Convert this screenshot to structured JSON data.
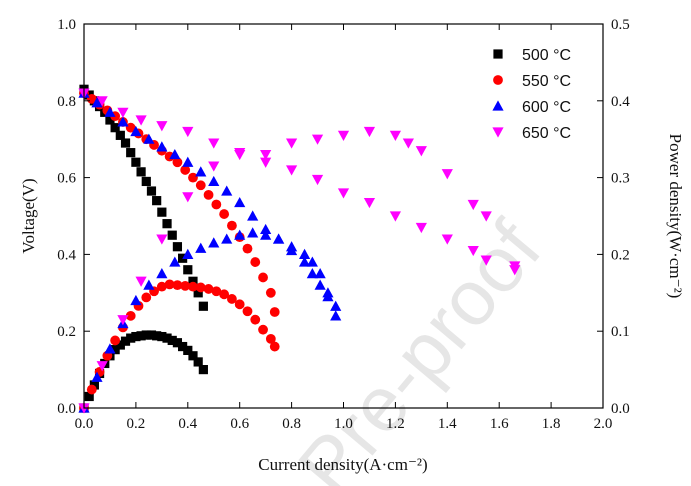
{
  "watermark": "Pre-proof",
  "chart_data": {
    "type": "scatter",
    "xlabel": "Current density(A·cm⁻²)",
    "ylabel": "Voltage(V)",
    "y2label": "Power density(W·cm⁻²)",
    "xlim": [
      0,
      2.0
    ],
    "ylim": [
      0,
      1.0
    ],
    "y2lim": [
      0,
      0.5
    ],
    "xticks": [
      "0.0",
      "0.2",
      "0.4",
      "0.6",
      "0.8",
      "1.0",
      "1.2",
      "1.4",
      "1.6",
      "1.8",
      "2.0"
    ],
    "yticks": [
      "0.0",
      "0.2",
      "0.4",
      "0.6",
      "0.8",
      "1.0"
    ],
    "y2ticks": [
      "0.0",
      "0.1",
      "0.2",
      "0.3",
      "0.4",
      "0.5"
    ],
    "grid": false,
    "legend_position": "top-right",
    "series": [
      {
        "name": "500 °C",
        "color": "#000000",
        "marker": "square",
        "voltage": [
          [
            0.0,
            0.83
          ],
          [
            0.02,
            0.815
          ],
          [
            0.04,
            0.8
          ],
          [
            0.06,
            0.785
          ],
          [
            0.08,
            0.77
          ],
          [
            0.1,
            0.75
          ],
          [
            0.12,
            0.73
          ],
          [
            0.14,
            0.71
          ],
          [
            0.16,
            0.69
          ],
          [
            0.18,
            0.665
          ],
          [
            0.2,
            0.64
          ],
          [
            0.22,
            0.615
          ],
          [
            0.24,
            0.59
          ],
          [
            0.26,
            0.565
          ],
          [
            0.28,
            0.54
          ],
          [
            0.3,
            0.51
          ],
          [
            0.32,
            0.48
          ],
          [
            0.34,
            0.45
          ],
          [
            0.36,
            0.42
          ],
          [
            0.38,
            0.39
          ],
          [
            0.4,
            0.36
          ],
          [
            0.42,
            0.33
          ],
          [
            0.44,
            0.3
          ],
          [
            0.46,
            0.265
          ]
        ],
        "power": [
          [
            0.0,
            0.0
          ],
          [
            0.02,
            0.015
          ],
          [
            0.04,
            0.03
          ],
          [
            0.06,
            0.045
          ],
          [
            0.08,
            0.058
          ],
          [
            0.1,
            0.068
          ],
          [
            0.12,
            0.076
          ],
          [
            0.14,
            0.082
          ],
          [
            0.16,
            0.087
          ],
          [
            0.18,
            0.091
          ],
          [
            0.2,
            0.093
          ],
          [
            0.22,
            0.094
          ],
          [
            0.24,
            0.095
          ],
          [
            0.26,
            0.095
          ],
          [
            0.28,
            0.094
          ],
          [
            0.3,
            0.093
          ],
          [
            0.32,
            0.091
          ],
          [
            0.34,
            0.088
          ],
          [
            0.36,
            0.085
          ],
          [
            0.38,
            0.08
          ],
          [
            0.4,
            0.075
          ],
          [
            0.42,
            0.068
          ],
          [
            0.44,
            0.06
          ],
          [
            0.46,
            0.05
          ]
        ]
      },
      {
        "name": "550 °C",
        "color": "#ff0000",
        "marker": "circle",
        "voltage": [
          [
            0.0,
            0.82
          ],
          [
            0.03,
            0.805
          ],
          [
            0.06,
            0.79
          ],
          [
            0.09,
            0.775
          ],
          [
            0.12,
            0.76
          ],
          [
            0.15,
            0.745
          ],
          [
            0.18,
            0.73
          ],
          [
            0.21,
            0.715
          ],
          [
            0.24,
            0.7
          ],
          [
            0.27,
            0.685
          ],
          [
            0.3,
            0.67
          ],
          [
            0.33,
            0.655
          ],
          [
            0.36,
            0.64
          ],
          [
            0.39,
            0.62
          ],
          [
            0.42,
            0.6
          ],
          [
            0.45,
            0.58
          ],
          [
            0.48,
            0.555
          ],
          [
            0.51,
            0.53
          ],
          [
            0.54,
            0.505
          ],
          [
            0.57,
            0.475
          ],
          [
            0.6,
            0.445
          ],
          [
            0.63,
            0.415
          ],
          [
            0.66,
            0.38
          ],
          [
            0.69,
            0.34
          ],
          [
            0.72,
            0.3
          ],
          [
            0.735,
            0.25
          ]
        ],
        "power": [
          [
            0.0,
            0.0
          ],
          [
            0.03,
            0.024
          ],
          [
            0.06,
            0.047
          ],
          [
            0.09,
            0.068
          ],
          [
            0.12,
            0.088
          ],
          [
            0.15,
            0.105
          ],
          [
            0.18,
            0.12
          ],
          [
            0.21,
            0.133
          ],
          [
            0.24,
            0.144
          ],
          [
            0.27,
            0.152
          ],
          [
            0.3,
            0.158
          ],
          [
            0.33,
            0.161
          ],
          [
            0.36,
            0.16
          ],
          [
            0.39,
            0.159
          ],
          [
            0.42,
            0.158
          ],
          [
            0.45,
            0.157
          ],
          [
            0.48,
            0.155
          ],
          [
            0.51,
            0.152
          ],
          [
            0.54,
            0.148
          ],
          [
            0.57,
            0.142
          ],
          [
            0.6,
            0.135
          ],
          [
            0.63,
            0.126
          ],
          [
            0.66,
            0.115
          ],
          [
            0.69,
            0.102
          ],
          [
            0.72,
            0.09
          ],
          [
            0.735,
            0.08
          ]
        ]
      },
      {
        "name": "600 °C",
        "color": "#0000ff",
        "marker": "triangle-up",
        "voltage": [
          [
            0.0,
            0.82
          ],
          [
            0.05,
            0.795
          ],
          [
            0.1,
            0.77
          ],
          [
            0.15,
            0.745
          ],
          [
            0.2,
            0.72
          ],
          [
            0.25,
            0.7
          ],
          [
            0.3,
            0.68
          ],
          [
            0.35,
            0.66
          ],
          [
            0.4,
            0.64
          ],
          [
            0.45,
            0.615
          ],
          [
            0.5,
            0.59
          ],
          [
            0.55,
            0.565
          ],
          [
            0.6,
            0.535
          ],
          [
            0.65,
            0.5
          ],
          [
            0.7,
            0.465
          ],
          [
            0.75,
            0.44
          ],
          [
            0.8,
            0.41
          ],
          [
            0.85,
            0.38
          ],
          [
            0.88,
            0.35
          ],
          [
            0.91,
            0.32
          ],
          [
            0.94,
            0.29
          ],
          [
            0.97,
            0.265
          ]
        ],
        "power": [
          [
            0.0,
            0.0
          ],
          [
            0.05,
            0.04
          ],
          [
            0.1,
            0.077
          ],
          [
            0.15,
            0.11
          ],
          [
            0.2,
            0.14
          ],
          [
            0.25,
            0.16
          ],
          [
            0.3,
            0.175
          ],
          [
            0.35,
            0.19
          ],
          [
            0.4,
            0.2
          ],
          [
            0.45,
            0.208
          ],
          [
            0.5,
            0.215
          ],
          [
            0.55,
            0.22
          ],
          [
            0.6,
            0.225
          ],
          [
            0.65,
            0.228
          ],
          [
            0.7,
            0.225
          ],
          [
            0.75,
            0.22
          ],
          [
            0.8,
            0.21
          ],
          [
            0.85,
            0.2
          ],
          [
            0.88,
            0.19
          ],
          [
            0.91,
            0.175
          ],
          [
            0.94,
            0.15
          ],
          [
            0.97,
            0.12
          ]
        ]
      },
      {
        "name": "650 °C",
        "color": "#ff00ff",
        "marker": "triangle-down",
        "voltage": [
          [
            0.0,
            0.82
          ],
          [
            0.07,
            0.8
          ],
          [
            0.15,
            0.77
          ],
          [
            0.22,
            0.75
          ],
          [
            0.3,
            0.735
          ],
          [
            0.4,
            0.72
          ],
          [
            0.5,
            0.69
          ],
          [
            0.6,
            0.665
          ],
          [
            0.7,
            0.64
          ],
          [
            0.8,
            0.62
          ],
          [
            0.9,
            0.595
          ],
          [
            1.0,
            0.56
          ],
          [
            1.1,
            0.535
          ],
          [
            1.2,
            0.5
          ],
          [
            1.3,
            0.47
          ],
          [
            1.4,
            0.44
          ],
          [
            1.5,
            0.41
          ],
          [
            1.55,
            0.385
          ],
          [
            1.66,
            0.36
          ]
        ],
        "power": [
          [
            0.0,
            0.0
          ],
          [
            0.07,
            0.055
          ],
          [
            0.15,
            0.115
          ],
          [
            0.22,
            0.165
          ],
          [
            0.3,
            0.22
          ],
          [
            0.4,
            0.275
          ],
          [
            0.5,
            0.315
          ],
          [
            0.6,
            0.33
          ],
          [
            0.7,
            0.33
          ],
          [
            0.8,
            0.345
          ],
          [
            0.9,
            0.35
          ],
          [
            1.0,
            0.355
          ],
          [
            1.1,
            0.36
          ],
          [
            1.2,
            0.355
          ],
          [
            1.25,
            0.345
          ],
          [
            1.3,
            0.335
          ],
          [
            1.4,
            0.305
          ],
          [
            1.5,
            0.265
          ],
          [
            1.55,
            0.25
          ],
          [
            1.66,
            0.185
          ]
        ]
      }
    ]
  }
}
